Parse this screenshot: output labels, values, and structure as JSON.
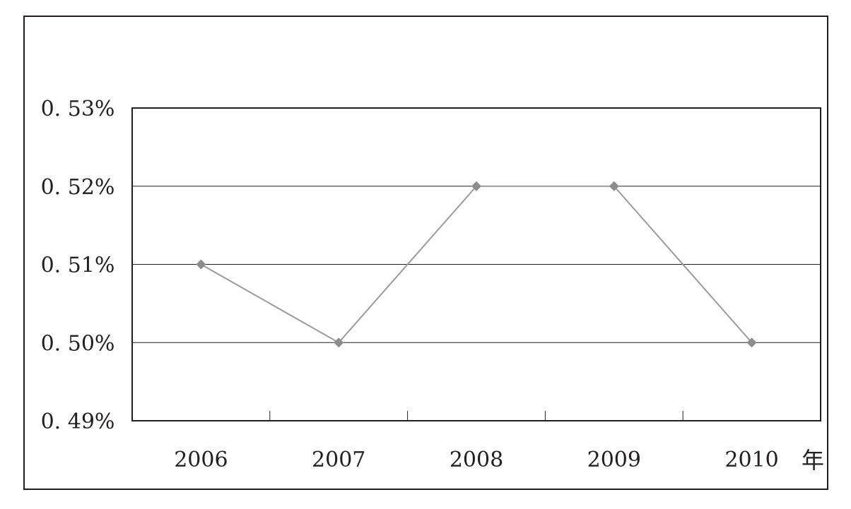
{
  "chart_data": {
    "type": "line",
    "title": "",
    "xlabel": "年",
    "ylabel": "",
    "categories": [
      "2006",
      "2007",
      "2008",
      "2009",
      "2010"
    ],
    "series": [
      {
        "values": [
          0.51,
          0.5,
          0.52,
          0.52,
          0.5
        ]
      }
    ],
    "ylim": [
      0.49,
      0.53
    ],
    "yticks": [
      0.49,
      0.5,
      0.51,
      0.52,
      0.53
    ],
    "ytick_labels": [
      "0. 49%",
      "0. 50%",
      "0. 51%",
      "0. 52%",
      "0. 53%"
    ],
    "grid": true,
    "legend": "none",
    "colors": {
      "line": "#9a9a9c",
      "marker": "#8c8c8e",
      "axis": "#231f20",
      "grid": "#231f20"
    }
  }
}
